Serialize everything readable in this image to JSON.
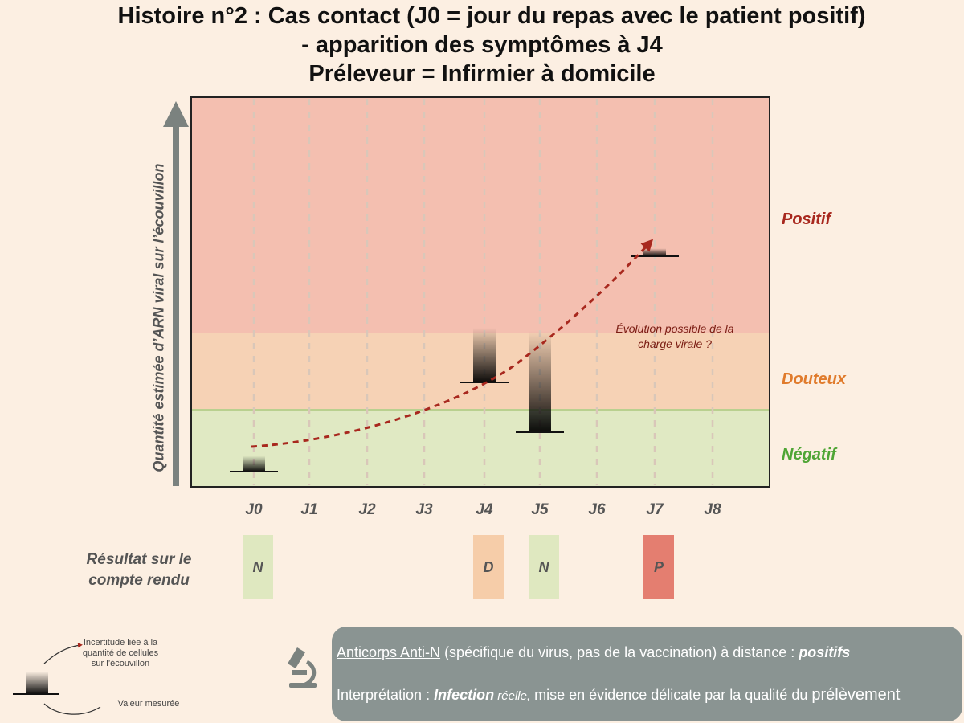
{
  "title": {
    "line1": "Histoire n°2 : Cas contact (J0 = jour du repas avec le patient positif)",
    "line2": "- apparition des symptômes à J4",
    "line3": "Préleveur = Infirmier à domicile"
  },
  "chart_data": {
    "type": "diagram",
    "y_axis_label": "Quantité estimée d’ARN viral sur l’écouvillon",
    "days": [
      "J0",
      "J1",
      "J2",
      "J3",
      "J4",
      "J5",
      "J6",
      "J7",
      "J8"
    ],
    "zones": [
      {
        "label": "Positif",
        "color": "#a8281e"
      },
      {
        "label": "Douteux",
        "color": "#e07b2c"
      },
      {
        "label": "Négatif",
        "color": "#4fa535"
      }
    ],
    "measurements": [
      {
        "day": "J0",
        "uncertainty": 0.1
      },
      {
        "day": "J4",
        "uncertainty": 0.35
      },
      {
        "day": "J5",
        "uncertainty": 0.65
      },
      {
        "day": "J7",
        "uncertainty": 0.05
      }
    ],
    "annotation": "Évolution possible de la charge virale ?"
  },
  "results": {
    "heading": "Résultat sur le compte rendu",
    "items": [
      {
        "day": "J0",
        "code": "N",
        "color": "#dfe8c0"
      },
      {
        "day": "J4",
        "code": "D",
        "color": "#f6cda9"
      },
      {
        "day": "J5",
        "code": "N",
        "color": "#dfe8c0"
      },
      {
        "day": "J7",
        "code": "P",
        "color": "#e47e70"
      }
    ]
  },
  "legend": {
    "uncertainty": "Incertitude liée à la quantité de cellules sur l’écouvillon",
    "measured": "Valeur mesurée"
  },
  "info": {
    "antibody_label": "Anticorps Anti-N",
    "antibody_text": " (spécifique du virus, pas de la vaccination) à distance : ",
    "antibody_result": "positifs",
    "interp_label": "Interprétation",
    "interp_sep": " : ",
    "interp_bold": "Infection",
    "interp_italic": " réelle,",
    "interp_text": " mise en évidence délicate par la qualité du ",
    "interp_last": "prélèvement"
  }
}
